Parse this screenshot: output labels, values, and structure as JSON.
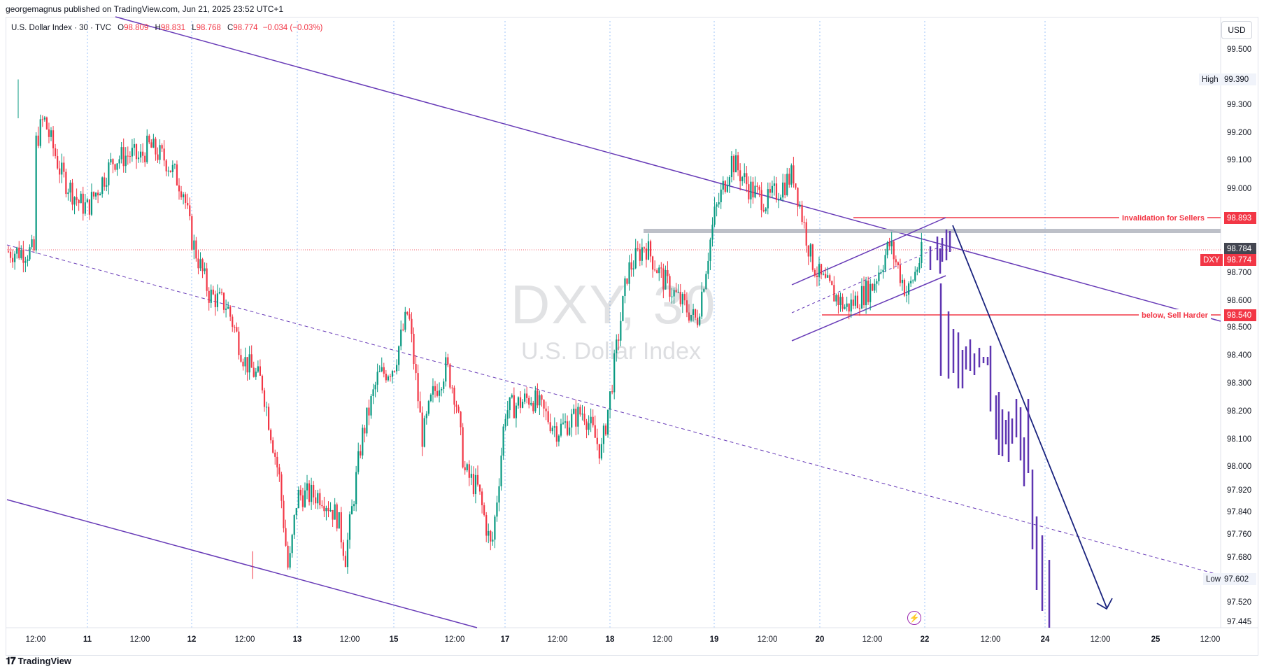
{
  "header": {
    "published_by": "georgemagnus published on TradingView.com, Jun 21, 2025 23:52 UTC+1"
  },
  "legend": {
    "symbol": "U.S. Dollar Index · 30 · TVC",
    "open_label": "O",
    "open": "98.809",
    "high_label": "H",
    "high": "98.831",
    "low_label": "L",
    "low": "98.768",
    "close_label": "C",
    "close": "98.774",
    "change": "−0.034 (−0.03%)"
  },
  "currency_button": "USD",
  "watermark": {
    "ticker": "DXY, 30",
    "name": "U.S. Dollar Index"
  },
  "footer": {
    "brand": "TradingView"
  },
  "colors": {
    "up": "#089981",
    "down": "#f23645",
    "channel": "#673ab7",
    "arrow": "#1a237e",
    "level": "#f23645",
    "resistance": "#b2b5be"
  },
  "price_tags": {
    "high_label": "High",
    "high_value": "99.390",
    "low_label": "Low",
    "low_value": "97.602",
    "invalidation_label": "Invalidation for Sellers",
    "invalidation_value": "98.893",
    "sell_harder_label": "below, Sell Harder",
    "sell_harder_value": "98.540",
    "resistance_value": "98.784",
    "symbol_label": "DXY",
    "last_value": "98.774"
  },
  "chart_data": {
    "type": "candlestick",
    "title": "DXY, 30",
    "interval": "30",
    "y_axis_ticks": [
      "99.500",
      "99.300",
      "99.200",
      "99.100",
      "99.000",
      "98.700",
      "98.600",
      "98.500",
      "98.400",
      "98.300",
      "98.200",
      "98.100",
      "98.000",
      "97.920",
      "97.840",
      "97.760",
      "97.680",
      "97.520",
      "97.445"
    ],
    "x_axis_ticks": [
      "12:00",
      "11",
      "12:00",
      "12",
      "12:00",
      "13",
      "12:00",
      "15",
      "12:00",
      "17",
      "12:00",
      "18",
      "12:00",
      "19",
      "12:00",
      "20",
      "12:00",
      "22",
      "12:00",
      "24",
      "12:00",
      "25",
      "12:00"
    ],
    "ylim": [
      97.445,
      99.56
    ],
    "close_path": [
      {
        "day": "Jun 10 12:00",
        "price": 99.15
      },
      {
        "day": "Jun 10 14:00",
        "price": 99.25
      },
      {
        "day": "Jun 10 18:00",
        "price": 99.05
      },
      {
        "day": "Jun 10 22:00",
        "price": 98.95
      },
      {
        "day": "Jun 11 00:00",
        "price": 98.93
      },
      {
        "day": "Jun 11 06:00",
        "price": 99.1
      },
      {
        "day": "Jun 11 10:00",
        "price": 99.12
      },
      {
        "day": "Jun 11 12:00",
        "price": 99.1
      },
      {
        "day": "Jun 11 14:00",
        "price": 99.15
      },
      {
        "day": "Jun 11 18:00",
        "price": 99.1
      },
      {
        "day": "Jun 11 22:00",
        "price": 99.0
      },
      {
        "day": "Jun 12 00:00",
        "price": 98.82
      },
      {
        "day": "Jun 12 04:00",
        "price": 98.62
      },
      {
        "day": "Jun 12 08:00",
        "price": 98.58
      },
      {
        "day": "Jun 12 12:00",
        "price": 98.38
      },
      {
        "day": "Jun 12 16:00",
        "price": 98.3
      },
      {
        "day": "Jun 12 20:00",
        "price": 97.95
      },
      {
        "day": "Jun 12 22:00",
        "price": 97.62
      },
      {
        "day": "Jun 13 00:00",
        "price": 97.9
      },
      {
        "day": "Jun 13 06:00",
        "price": 97.9
      },
      {
        "day": "Jun 13 10:00",
        "price": 97.82
      },
      {
        "day": "Jun 13 12:00",
        "price": 97.68
      },
      {
        "day": "Jun 13 16:00",
        "price": 98.1
      },
      {
        "day": "Jun 13 20:00",
        "price": 98.32
      },
      {
        "day": "Jun 15 00:00",
        "price": 98.36
      },
      {
        "day": "Jun 15 06:00",
        "price": 98.56
      },
      {
        "day": "Jun 15 12:00",
        "price": 98.1
      },
      {
        "day": "Jun 15 16:00",
        "price": 98.25
      },
      {
        "day": "Jun 15 22:00",
        "price": 98.36
      },
      {
        "day": "Jun 16 02:00",
        "price": 98.25
      },
      {
        "day": "Jun 16 06:00",
        "price": 97.98
      },
      {
        "day": "Jun 16 12:00",
        "price": 97.92
      },
      {
        "day": "Jun 16 18:00",
        "price": 97.7
      },
      {
        "day": "Jun 16 22:00",
        "price": 98.02
      },
      {
        "day": "Jun 17 00:00",
        "price": 98.2
      },
      {
        "day": "Jun 17 06:00",
        "price": 98.25
      },
      {
        "day": "Jun 17 12:00",
        "price": 98.13
      },
      {
        "day": "Jun 17 18:00",
        "price": 98.2
      },
      {
        "day": "Jun 17 22:00",
        "price": 98.05
      },
      {
        "day": "Jun 18 00:00",
        "price": 98.25
      },
      {
        "day": "Jun 18 04:00",
        "price": 98.7
      },
      {
        "day": "Jun 18 08:00",
        "price": 98.8
      },
      {
        "day": "Jun 18 12:00",
        "price": 98.68
      },
      {
        "day": "Jun 18 16:00",
        "price": 98.6
      },
      {
        "day": "Jun 18 20:00",
        "price": 98.52
      },
      {
        "day": "Jun 19 00:00",
        "price": 98.9
      },
      {
        "day": "Jun 19 04:00",
        "price": 99.1
      },
      {
        "day": "Jun 19 08:00",
        "price": 99.0
      },
      {
        "day": "Jun 19 12:00",
        "price": 98.95
      },
      {
        "day": "Jun 19 18:00",
        "price": 99.05
      },
      {
        "day": "Jun 19 22:00",
        "price": 98.75
      },
      {
        "day": "Jun 20 00:00",
        "price": 98.68
      },
      {
        "day": "Jun 20 06:00",
        "price": 98.57
      },
      {
        "day": "Jun 20 12:00",
        "price": 98.65
      },
      {
        "day": "Jun 20 16:00",
        "price": 98.8
      },
      {
        "day": "Jun 20 20:00",
        "price": 98.62
      },
      {
        "day": "Jun 20 23:30",
        "price": 98.774
      }
    ],
    "levels": [
      {
        "name": "Invalidation for Sellers",
        "price": 98.893
      },
      {
        "name": "below, Sell Harder",
        "price": 98.54
      },
      {
        "price": 98.784
      }
    ],
    "session_high": 99.39,
    "session_low": 97.602
  }
}
